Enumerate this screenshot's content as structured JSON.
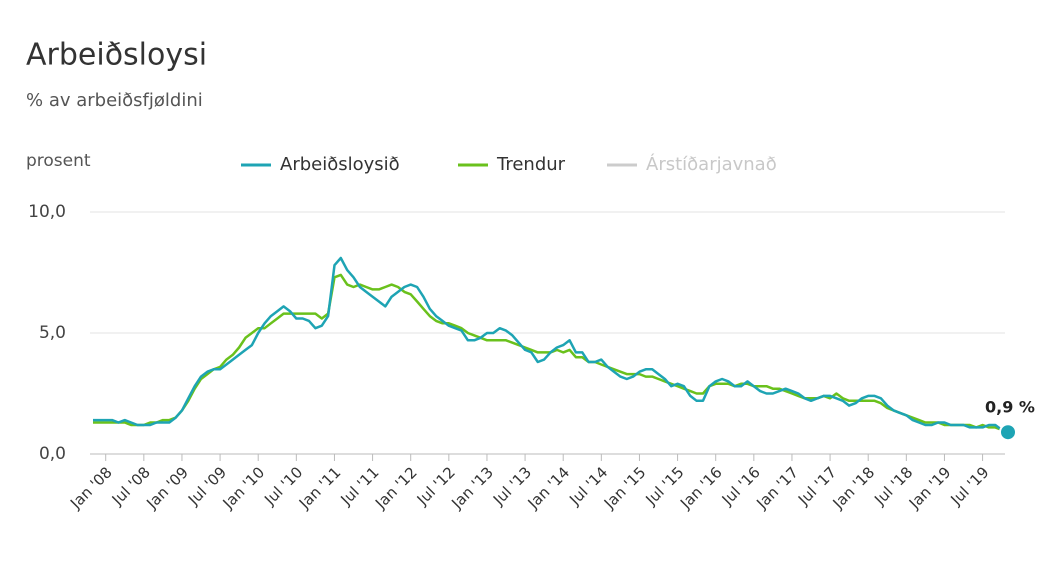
{
  "chart_data": {
    "type": "line",
    "title": "Arbeiðsloysi",
    "subtitle": "% av arbeiðsfjøldini",
    "y_axis_label": "prosent",
    "annotation": "0,9 %",
    "categories": [
      null,
      null,
      "Jan '08",
      null,
      null,
      null,
      null,
      null,
      "Jul '08",
      null,
      null,
      null,
      null,
      null,
      "Jan '09",
      null,
      null,
      null,
      null,
      null,
      "Jul '09",
      null,
      null,
      null,
      null,
      null,
      "Jan '10",
      null,
      null,
      null,
      null,
      null,
      "Jul '10",
      null,
      null,
      null,
      null,
      null,
      "Jan '11",
      null,
      null,
      null,
      null,
      null,
      "Jul '11",
      null,
      null,
      null,
      null,
      null,
      "Jan '12",
      null,
      null,
      null,
      null,
      null,
      "Jul '12",
      null,
      null,
      null,
      null,
      null,
      "Jan '13",
      null,
      null,
      null,
      null,
      null,
      "Jul '13",
      null,
      null,
      null,
      null,
      null,
      "Jan '14",
      null,
      null,
      null,
      null,
      null,
      "Jul '14",
      null,
      null,
      null,
      null,
      null,
      "Jan '15",
      null,
      null,
      null,
      null,
      null,
      "Jul '15",
      null,
      null,
      null,
      null,
      null,
      "Jan '16",
      null,
      null,
      null,
      null,
      null,
      "Jul '16",
      null,
      null,
      null,
      null,
      null,
      "Jan '17",
      null,
      null,
      null,
      null,
      null,
      "Jul '17",
      null,
      null,
      null,
      null,
      null,
      "Jan '18",
      null,
      null,
      null,
      null,
      null,
      "Jul '18",
      null,
      null,
      null,
      null,
      null,
      "Jan '19",
      null,
      null,
      null,
      null,
      null,
      "Jul '19",
      null,
      null,
      null,
      null
    ],
    "series": [
      {
        "name": "Arbeiðsloysið",
        "color": "#1ea4b4",
        "values": [
          1.4,
          1.4,
          1.4,
          1.4,
          1.3,
          1.4,
          1.3,
          1.2,
          1.2,
          1.2,
          1.3,
          1.3,
          1.3,
          1.5,
          1.8,
          2.3,
          2.8,
          3.2,
          3.4,
          3.5,
          3.5,
          3.7,
          3.9,
          4.1,
          4.3,
          4.5,
          5.0,
          5.4,
          5.7,
          5.9,
          6.1,
          5.9,
          5.6,
          5.6,
          5.5,
          5.2,
          5.3,
          5.7,
          7.8,
          8.1,
          7.6,
          7.3,
          6.9,
          6.7,
          6.5,
          6.3,
          6.1,
          6.5,
          6.7,
          6.9,
          7.0,
          6.9,
          6.5,
          6.0,
          5.7,
          5.5,
          5.3,
          5.2,
          5.1,
          4.7,
          4.7,
          4.8,
          5.0,
          5.0,
          5.2,
          5.1,
          4.9,
          4.6,
          4.3,
          4.2,
          3.8,
          3.9,
          4.2,
          4.4,
          4.5,
          4.7,
          4.2,
          4.2,
          3.8,
          3.8,
          3.9,
          3.6,
          3.4,
          3.2,
          3.1,
          3.2,
          3.4,
          3.5,
          3.5,
          3.3,
          3.1,
          2.8,
          2.9,
          2.8,
          2.4,
          2.2,
          2.2,
          2.8,
          3.0,
          3.1,
          3.0,
          2.8,
          2.8,
          3.0,
          2.8,
          2.6,
          2.5,
          2.5,
          2.6,
          2.7,
          2.6,
          2.5,
          2.3,
          2.2,
          2.3,
          2.4,
          2.4,
          2.3,
          2.2,
          2.0,
          2.1,
          2.3,
          2.4,
          2.4,
          2.3,
          2.0,
          1.8,
          1.7,
          1.6,
          1.4,
          1.3,
          1.2,
          1.2,
          1.3,
          1.3,
          1.2,
          1.2,
          1.2,
          1.1,
          1.1,
          1.1,
          1.2,
          1.2,
          1.0,
          0.9
        ]
      },
      {
        "name": "Trendur",
        "color": "#6ac11c",
        "values": [
          1.3,
          1.3,
          1.3,
          1.3,
          1.3,
          1.3,
          1.2,
          1.2,
          1.2,
          1.3,
          1.3,
          1.4,
          1.4,
          1.5,
          1.8,
          2.2,
          2.7,
          3.1,
          3.3,
          3.5,
          3.6,
          3.9,
          4.1,
          4.4,
          4.8,
          5.0,
          5.2,
          5.2,
          5.4,
          5.6,
          5.8,
          5.8,
          5.8,
          5.8,
          5.8,
          5.8,
          5.6,
          5.8,
          7.3,
          7.4,
          7.0,
          6.9,
          7.0,
          6.9,
          6.8,
          6.8,
          6.9,
          7.0,
          6.9,
          6.7,
          6.6,
          6.3,
          6.0,
          5.7,
          5.5,
          5.4,
          5.4,
          5.3,
          5.2,
          5.0,
          4.9,
          4.8,
          4.7,
          4.7,
          4.7,
          4.7,
          4.6,
          4.5,
          4.4,
          4.3,
          4.2,
          4.2,
          4.2,
          4.3,
          4.2,
          4.3,
          4.0,
          4.0,
          3.8,
          3.8,
          3.7,
          3.6,
          3.5,
          3.4,
          3.3,
          3.3,
          3.3,
          3.2,
          3.2,
          3.1,
          3.0,
          2.9,
          2.8,
          2.7,
          2.6,
          2.5,
          2.5,
          2.8,
          2.9,
          2.9,
          2.9,
          2.8,
          2.9,
          2.9,
          2.8,
          2.8,
          2.8,
          2.7,
          2.7,
          2.6,
          2.5,
          2.4,
          2.3,
          2.3,
          2.3,
          2.4,
          2.3,
          2.5,
          2.3,
          2.2,
          2.2,
          2.2,
          2.2,
          2.2,
          2.1,
          1.9,
          1.8,
          1.7,
          1.6,
          1.5,
          1.4,
          1.3,
          1.3,
          1.3,
          1.2,
          1.2,
          1.2,
          1.2,
          1.2,
          1.1,
          1.2,
          1.1,
          1.1,
          1.0,
          1.0
        ]
      }
    ],
    "hidden_series": [
      {
        "name": "Árstíðarjavnað",
        "color": "#cccccc"
      }
    ],
    "ylim": [
      0,
      10
    ],
    "yticks": [
      {
        "value": 0,
        "label": "0,0"
      },
      {
        "value": 5,
        "label": "5,0"
      },
      {
        "value": 10,
        "label": "10,0"
      }
    ],
    "grid": true
  }
}
